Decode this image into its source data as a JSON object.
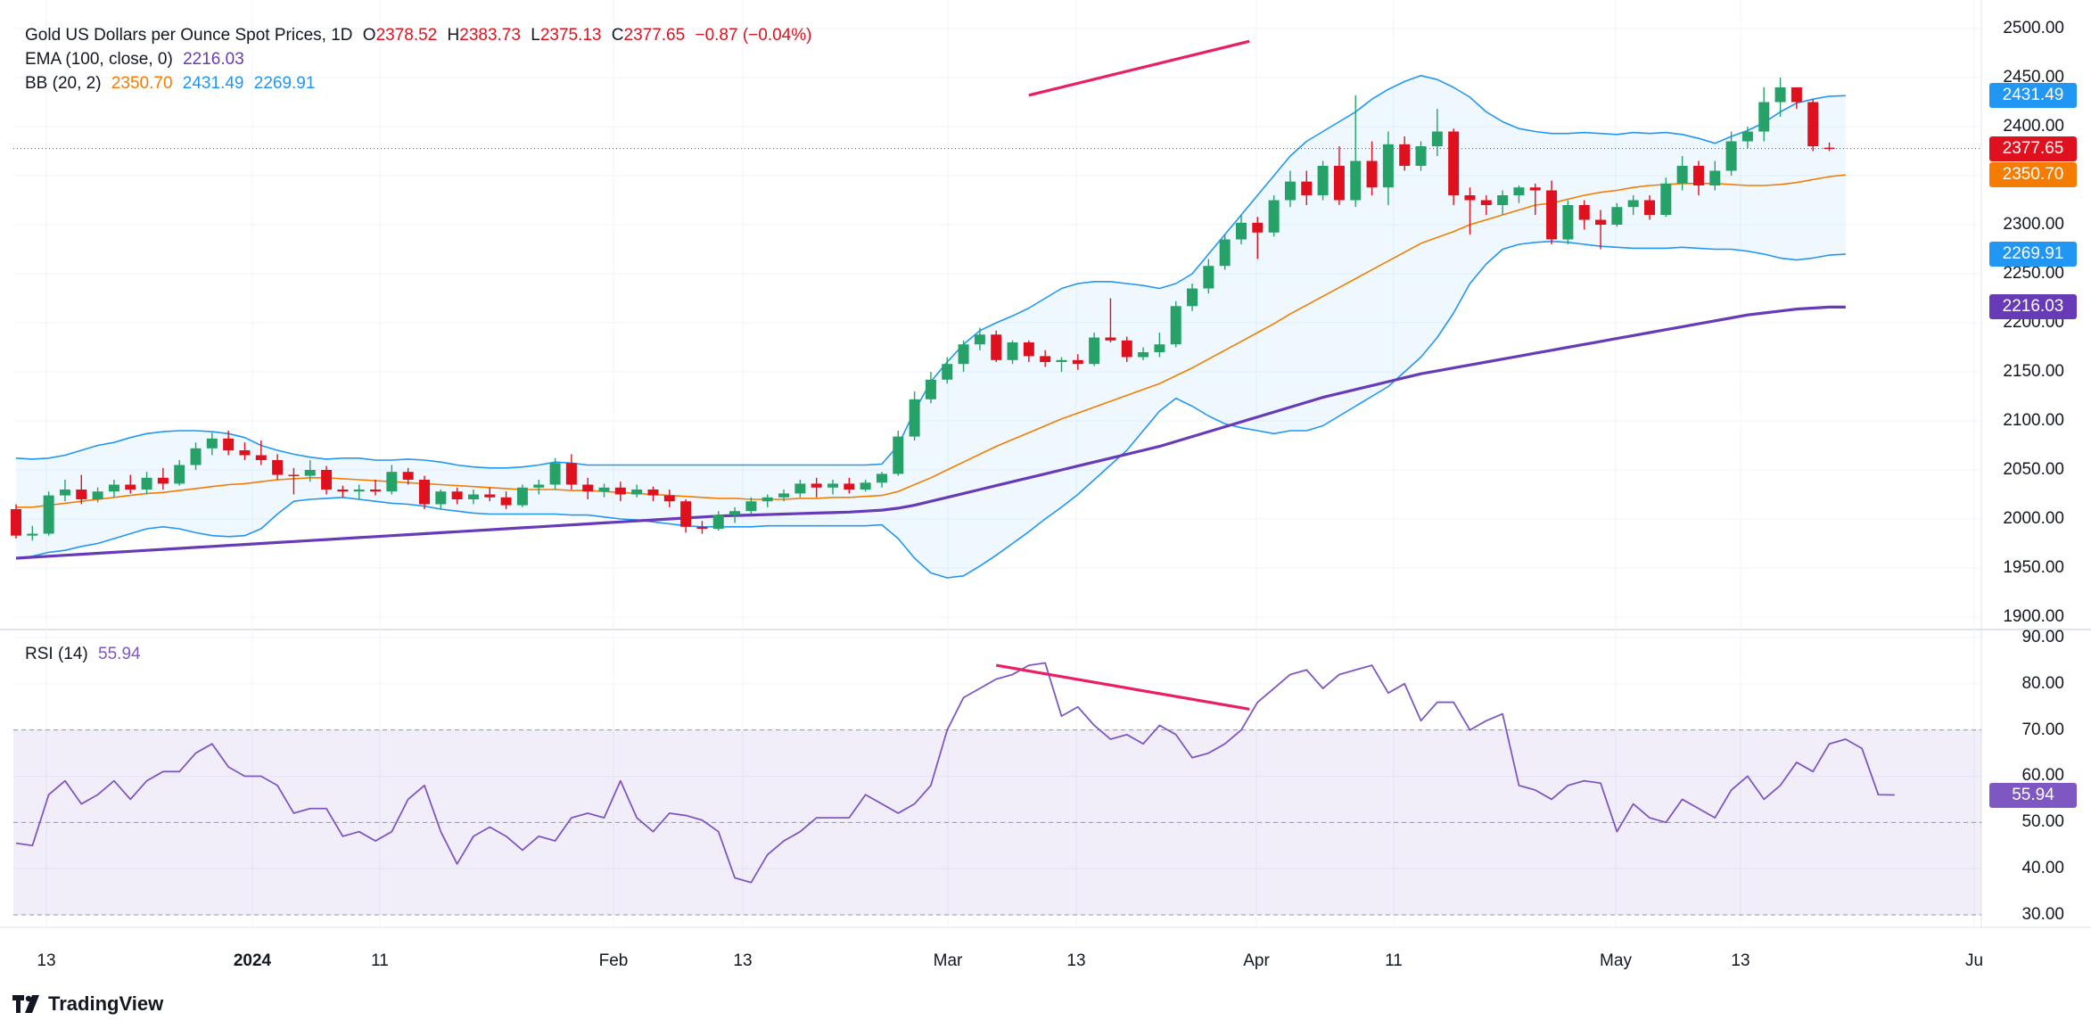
{
  "header": {
    "title": "Gold US Dollars per Ounce Spot Prices, 1D",
    "o_label": "O",
    "o_value": "2378.52",
    "h_label": "H",
    "h_value": "2383.73",
    "l_label": "L",
    "l_value": "2375.13",
    "c_label": "C",
    "c_value": "2377.65",
    "change": "−0.87 (−0.04%)"
  },
  "ema_legend": {
    "label": "EMA (100, close, 0)",
    "value": "2216.03"
  },
  "bb_legend": {
    "label": "BB (20, 2)",
    "basis": "2350.70",
    "upper": "2431.49",
    "lower": "2269.91"
  },
  "rsi_legend": {
    "label": "RSI (14)",
    "value": "55.94"
  },
  "badges": {
    "upper": "2431.49",
    "close": "2377.65",
    "basis": "2350.70",
    "lower": "2269.91",
    "ema": "2216.03",
    "rsi": "55.94"
  },
  "price_axis": [
    "2500.00",
    "2450.00",
    "2400.00",
    "2350.00",
    "2300.00",
    "2250.00",
    "2200.00",
    "2150.00",
    "2100.00",
    "2050.00",
    "2000.00",
    "1950.00",
    "1900.00"
  ],
  "rsi_axis": [
    "90.00",
    "80.00",
    "70.00",
    "60.00",
    "50.00",
    "40.00",
    "30.00"
  ],
  "time_axis": [
    {
      "label": "13",
      "bold": false
    },
    {
      "label": "2024",
      "bold": true
    },
    {
      "label": "11",
      "bold": false
    },
    {
      "label": "Feb",
      "bold": false
    },
    {
      "label": "13",
      "bold": false
    },
    {
      "label": "Mar",
      "bold": false
    },
    {
      "label": "13",
      "bold": false
    },
    {
      "label": "Apr",
      "bold": false
    },
    {
      "label": "11",
      "bold": false
    },
    {
      "label": "May",
      "bold": false
    },
    {
      "label": "13",
      "bold": false
    },
    {
      "label": "Ju",
      "bold": false
    }
  ],
  "footer": {
    "brand": "TradingView"
  },
  "colors": {
    "up": "#26a269",
    "down": "#e0111f",
    "bb_band": "#2196f3",
    "bb_basis": "#f57c00",
    "ema": "#673ab7",
    "rsi": "#7e57c2",
    "divergence": "#e91e63"
  },
  "chart_data": {
    "type": "candlestick",
    "title": "Gold US Dollars per Ounce Spot Prices, 1D",
    "price_range": [
      1900,
      2500
    ],
    "rsi_range": [
      30,
      90
    ],
    "rsi_levels": [
      70,
      50,
      30
    ],
    "grid": true,
    "candles": [
      [
        2010,
        2015,
        1980,
        1983
      ],
      [
        1983,
        1993,
        1978,
        1985
      ],
      [
        1985,
        2028,
        1983,
        2024
      ],
      [
        2024,
        2040,
        2018,
        2030
      ],
      [
        2030,
        2045,
        2015,
        2020
      ],
      [
        2020,
        2032,
        2017,
        2028
      ],
      [
        2028,
        2040,
        2022,
        2035
      ],
      [
        2035,
        2045,
        2026,
        2030
      ],
      [
        2030,
        2048,
        2025,
        2042
      ],
      [
        2042,
        2052,
        2030,
        2036
      ],
      [
        2036,
        2060,
        2034,
        2055
      ],
      [
        2055,
        2078,
        2050,
        2072
      ],
      [
        2072,
        2088,
        2065,
        2082
      ],
      [
        2082,
        2090,
        2065,
        2070
      ],
      [
        2070,
        2078,
        2060,
        2065
      ],
      [
        2065,
        2080,
        2055,
        2060
      ],
      [
        2060,
        2066,
        2040,
        2045
      ],
      [
        2045,
        2052,
        2025,
        2044
      ],
      [
        2044,
        2060,
        2038,
        2050
      ],
      [
        2050,
        2054,
        2025,
        2030
      ],
      [
        2030,
        2034,
        2022,
        2028
      ],
      [
        2028,
        2035,
        2020,
        2030
      ],
      [
        2030,
        2040,
        2024,
        2028
      ],
      [
        2028,
        2055,
        2025,
        2048
      ],
      [
        2048,
        2052,
        2035,
        2040
      ],
      [
        2040,
        2044,
        2010,
        2015
      ],
      [
        2015,
        2030,
        2010,
        2028
      ],
      [
        2028,
        2032,
        2015,
        2020
      ],
      [
        2020,
        2030,
        2015,
        2025
      ],
      [
        2025,
        2032,
        2018,
        2022
      ],
      [
        2022,
        2028,
        2010,
        2014
      ],
      [
        2014,
        2035,
        2012,
        2032
      ],
      [
        2032,
        2040,
        2025,
        2035
      ],
      [
        2035,
        2062,
        2030,
        2057
      ],
      [
        2057,
        2066,
        2030,
        2035
      ],
      [
        2035,
        2042,
        2020,
        2028
      ],
      [
        2028,
        2036,
        2022,
        2032
      ],
      [
        2032,
        2038,
        2018,
        2025
      ],
      [
        2025,
        2035,
        2022,
        2030
      ],
      [
        2030,
        2033,
        2018,
        2024
      ],
      [
        2024,
        2030,
        2012,
        2018
      ],
      [
        2018,
        2020,
        1986,
        1992
      ],
      [
        1992,
        1998,
        1985,
        1990
      ],
      [
        1990,
        2008,
        1988,
        2004
      ],
      [
        2004,
        2012,
        1996,
        2008
      ],
      [
        2008,
        2022,
        2005,
        2018
      ],
      [
        2018,
        2025,
        2012,
        2022
      ],
      [
        2022,
        2030,
        2018,
        2026
      ],
      [
        2026,
        2040,
        2022,
        2036
      ],
      [
        2036,
        2042,
        2022,
        2032
      ],
      [
        2032,
        2040,
        2025,
        2036
      ],
      [
        2036,
        2042,
        2026,
        2030
      ],
      [
        2030,
        2040,
        2028,
        2037
      ],
      [
        2037,
        2048,
        2032,
        2046
      ],
      [
        2046,
        2090,
        2044,
        2084
      ],
      [
        2084,
        2130,
        2080,
        2122
      ],
      [
        2122,
        2150,
        2118,
        2142
      ],
      [
        2142,
        2165,
        2138,
        2158
      ],
      [
        2158,
        2182,
        2150,
        2178
      ],
      [
        2178,
        2195,
        2172,
        2188
      ],
      [
        2188,
        2192,
        2160,
        2162
      ],
      [
        2162,
        2182,
        2158,
        2180
      ],
      [
        2180,
        2182,
        2160,
        2166
      ],
      [
        2166,
        2172,
        2155,
        2160
      ],
      [
        2160,
        2165,
        2150,
        2162
      ],
      [
        2162,
        2168,
        2152,
        2158
      ],
      [
        2158,
        2190,
        2156,
        2185
      ],
      [
        2185,
        2225,
        2180,
        2182
      ],
      [
        2182,
        2186,
        2160,
        2165
      ],
      [
        2165,
        2175,
        2162,
        2170
      ],
      [
        2170,
        2190,
        2165,
        2178
      ],
      [
        2178,
        2222,
        2175,
        2217
      ],
      [
        2217,
        2240,
        2212,
        2235
      ],
      [
        2235,
        2265,
        2230,
        2258
      ],
      [
        2258,
        2290,
        2254,
        2285
      ],
      [
        2285,
        2310,
        2280,
        2302
      ],
      [
        2302,
        2308,
        2265,
        2292
      ],
      [
        2292,
        2330,
        2288,
        2325
      ],
      [
        2325,
        2355,
        2318,
        2344
      ],
      [
        2344,
        2355,
        2320,
        2330
      ],
      [
        2330,
        2365,
        2325,
        2360
      ],
      [
        2360,
        2380,
        2320,
        2325
      ],
      [
        2325,
        2432,
        2318,
        2365
      ],
      [
        2365,
        2385,
        2330,
        2338
      ],
      [
        2338,
        2395,
        2320,
        2382
      ],
      [
        2382,
        2390,
        2355,
        2360
      ],
      [
        2360,
        2385,
        2355,
        2380
      ],
      [
        2380,
        2418,
        2370,
        2395
      ],
      [
        2395,
        2398,
        2320,
        2330
      ],
      [
        2330,
        2338,
        2290,
        2325
      ],
      [
        2325,
        2330,
        2310,
        2320
      ],
      [
        2320,
        2335,
        2310,
        2330
      ],
      [
        2330,
        2340,
        2322,
        2338
      ],
      [
        2338,
        2342,
        2310,
        2335
      ],
      [
        2335,
        2345,
        2280,
        2285
      ],
      [
        2285,
        2325,
        2280,
        2320
      ],
      [
        2320,
        2325,
        2295,
        2305
      ],
      [
        2305,
        2315,
        2275,
        2300
      ],
      [
        2300,
        2322,
        2298,
        2318
      ],
      [
        2318,
        2330,
        2310,
        2325
      ],
      [
        2325,
        2330,
        2305,
        2310
      ],
      [
        2310,
        2348,
        2308,
        2342
      ],
      [
        2342,
        2370,
        2335,
        2360
      ],
      [
        2360,
        2365,
        2330,
        2340
      ],
      [
        2340,
        2365,
        2335,
        2355
      ],
      [
        2355,
        2395,
        2350,
        2385
      ],
      [
        2385,
        2400,
        2378,
        2395
      ],
      [
        2395,
        2440,
        2385,
        2425
      ],
      [
        2425,
        2450,
        2410,
        2440
      ],
      [
        2440,
        2438,
        2418,
        2425
      ],
      [
        2425,
        2428,
        2375,
        2380
      ],
      [
        2378.52,
        2383.73,
        2375.13,
        2377.65
      ]
    ],
    "bb_upper": [
      2062,
      2061,
      2062,
      2065,
      2070,
      2075,
      2078,
      2083,
      2087,
      2089,
      2090,
      2090,
      2089,
      2087,
      2083,
      2075,
      2070,
      2066,
      2063,
      2061,
      2062,
      2062,
      2060,
      2060,
      2061,
      2060,
      2058,
      2055,
      2053,
      2052,
      2052,
      2053,
      2055,
      2058,
      2057,
      2055,
      2055,
      2055,
      2055,
      2055,
      2055,
      2055,
      2055,
      2055,
      2055,
      2055,
      2055,
      2055,
      2055,
      2055,
      2055,
      2055,
      2055,
      2056,
      2075,
      2110,
      2140,
      2160,
      2178,
      2192,
      2200,
      2207,
      2215,
      2225,
      2235,
      2240,
      2242,
      2242,
      2240,
      2238,
      2235,
      2240,
      2250,
      2270,
      2290,
      2310,
      2330,
      2350,
      2370,
      2385,
      2395,
      2405,
      2415,
      2428,
      2438,
      2446,
      2452,
      2448,
      2440,
      2430,
      2415,
      2405,
      2398,
      2395,
      2393,
      2393,
      2394,
      2393,
      2392,
      2394,
      2393,
      2394,
      2392,
      2388,
      2383,
      2390,
      2396,
      2404,
      2415,
      2424,
      2428,
      2431,
      2431.49
    ],
    "bb_basis": [
      2012,
      2012,
      2014,
      2016,
      2018,
      2020,
      2022,
      2024,
      2026,
      2027,
      2029,
      2031,
      2033,
      2035,
      2036,
      2038,
      2040,
      2041,
      2042,
      2042,
      2041,
      2040,
      2039,
      2038,
      2037,
      2036,
      2035,
      2034,
      2033,
      2032,
      2031,
      2030,
      2030,
      2030,
      2029,
      2029,
      2028,
      2027,
      2026,
      2025,
      2024,
      2023,
      2022,
      2021,
      2021,
      2020,
      2020,
      2020,
      2021,
      2021,
      2022,
      2022,
      2023,
      2024,
      2028,
      2035,
      2042,
      2050,
      2058,
      2066,
      2074,
      2081,
      2088,
      2095,
      2102,
      2108,
      2114,
      2120,
      2126,
      2132,
      2138,
      2146,
      2154,
      2163,
      2172,
      2181,
      2190,
      2199,
      2209,
      2218,
      2227,
      2236,
      2245,
      2254,
      2263,
      2272,
      2281,
      2287,
      2293,
      2300,
      2305,
      2310,
      2315,
      2320,
      2322,
      2326,
      2330,
      2333,
      2335,
      2338,
      2340,
      2341,
      2342,
      2342,
      2342,
      2341,
      2340,
      2340,
      2341,
      2343,
      2346,
      2349,
      2350.7
    ],
    "bb_lower": [
      1960,
      1962,
      1966,
      1968,
      1972,
      1975,
      1980,
      1985,
      1990,
      1992,
      1990,
      1986,
      1983,
      1982,
      1983,
      1990,
      2005,
      2018,
      2020,
      2021,
      2022,
      2020,
      2018,
      2016,
      2015,
      2013,
      2010,
      2008,
      2006,
      2005,
      2005,
      2005,
      2005,
      2005,
      2004,
      2004,
      2002,
      2000,
      1999,
      1997,
      1995,
      1993,
      1992,
      1992,
      1992,
      1992,
      1993,
      1993,
      1993,
      1993,
      1993,
      1993,
      1993,
      1994,
      1980,
      1960,
      1945,
      1940,
      1942,
      1952,
      1963,
      1975,
      1987,
      2000,
      2012,
      2025,
      2040,
      2055,
      2070,
      2090,
      2110,
      2123,
      2115,
      2105,
      2097,
      2093,
      2090,
      2087,
      2090,
      2090,
      2095,
      2105,
      2115,
      2125,
      2135,
      2150,
      2165,
      2185,
      2210,
      2240,
      2260,
      2275,
      2280,
      2282,
      2283,
      2282,
      2280,
      2278,
      2277,
      2276,
      2276,
      2276,
      2277,
      2276,
      2275,
      2275,
      2273,
      2270,
      2266,
      2264,
      2266,
      2269,
      2269.91
    ],
    "ema100": [
      1960,
      1961,
      1962,
      1963,
      1964,
      1965,
      1966,
      1967,
      1968,
      1969,
      1970,
      1971,
      1972,
      1973,
      1974,
      1975,
      1976,
      1977,
      1978,
      1979,
      1980,
      1981,
      1982,
      1983,
      1984,
      1985,
      1986,
      1987,
      1988,
      1989,
      1990,
      1991,
      1992,
      1993,
      1994,
      1995,
      1996,
      1997,
      1998,
      1999,
      2000,
      2001,
      2002,
      2003,
      2003.5,
      2004,
      2004.5,
      2005,
      2005.5,
      2006,
      2006.5,
      2007,
      2008,
      2009,
      2011,
      2014,
      2018,
      2022,
      2026,
      2030,
      2034,
      2038,
      2042,
      2046,
      2050,
      2054,
      2058,
      2062,
      2066,
      2070,
      2074,
      2079,
      2084,
      2089,
      2094,
      2099,
      2104,
      2109,
      2114,
      2119,
      2124,
      2128,
      2132,
      2136,
      2140,
      2144,
      2148,
      2151,
      2154,
      2157,
      2160,
      2163,
      2166,
      2169,
      2172,
      2175,
      2178,
      2181,
      2184,
      2187,
      2190,
      2193,
      2196,
      2199,
      2202,
      2205,
      2208,
      2210,
      2212,
      2214,
      2215,
      2216,
      2216.03
    ],
    "rsi": [
      45.5,
      45,
      56,
      59,
      54,
      56,
      59,
      55,
      59,
      61,
      61,
      65,
      67,
      62,
      60,
      60,
      58,
      52,
      53,
      53,
      47,
      48,
      46,
      48,
      55,
      58,
      48,
      41,
      47,
      49,
      47,
      44,
      47,
      46,
      51,
      52,
      51,
      59,
      51,
      48,
      52,
      51.5,
      50.5,
      48,
      38,
      37,
      43,
      46,
      48,
      51,
      51,
      51,
      56,
      54,
      52,
      54,
      58,
      70,
      77,
      79,
      81,
      82,
      84,
      84.5,
      73,
      75,
      71,
      68,
      69,
      67,
      71,
      69,
      64,
      65,
      67,
      70,
      76,
      79,
      82,
      83,
      79,
      82,
      83,
      84,
      78,
      80,
      72,
      76,
      76,
      70,
      72,
      73.5,
      58,
      57,
      55,
      58,
      59,
      58.5,
      48,
      54,
      51,
      50,
      55,
      53,
      51,
      57,
      60,
      55,
      58,
      63,
      61,
      67,
      68,
      66,
      56,
      55.94
    ]
  }
}
